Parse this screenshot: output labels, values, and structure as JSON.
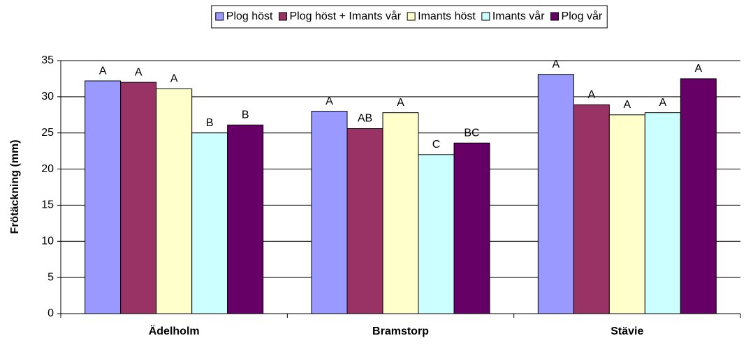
{
  "chart_data": {
    "type": "bar",
    "y_label": "Frötäckning (mm)",
    "categories": [
      "Ädelholm",
      "Bramstorp",
      "Stävie"
    ],
    "series": [
      {
        "name": "Plog höst",
        "color": "#9999ff",
        "values": [
          32.2,
          28.0,
          33.1
        ],
        "labels": [
          "A",
          "A",
          "A"
        ]
      },
      {
        "name": "Plog höst + Imants vår",
        "color": "#993366",
        "values": [
          32.0,
          25.6,
          28.9
        ],
        "labels": [
          "A",
          "AB",
          "A"
        ]
      },
      {
        "name": "Imants höst",
        "color": "#ffffcc",
        "values": [
          31.1,
          27.8,
          27.5
        ],
        "labels": [
          "A",
          "A",
          "A"
        ]
      },
      {
        "name": "Imants vår",
        "color": "#ccffff",
        "values": [
          25.0,
          22.0,
          27.8
        ],
        "labels": [
          "B",
          "C",
          "A"
        ]
      },
      {
        "name": "Plog vår",
        "color": "#660066",
        "values": [
          26.1,
          23.6,
          32.5
        ],
        "labels": [
          "B",
          "BC",
          "A"
        ]
      }
    ],
    "ylim": [
      0,
      35
    ],
    "yticks": [
      0,
      5,
      10,
      15,
      20,
      25,
      30,
      35
    ],
    "grid": true,
    "legend": "top"
  }
}
